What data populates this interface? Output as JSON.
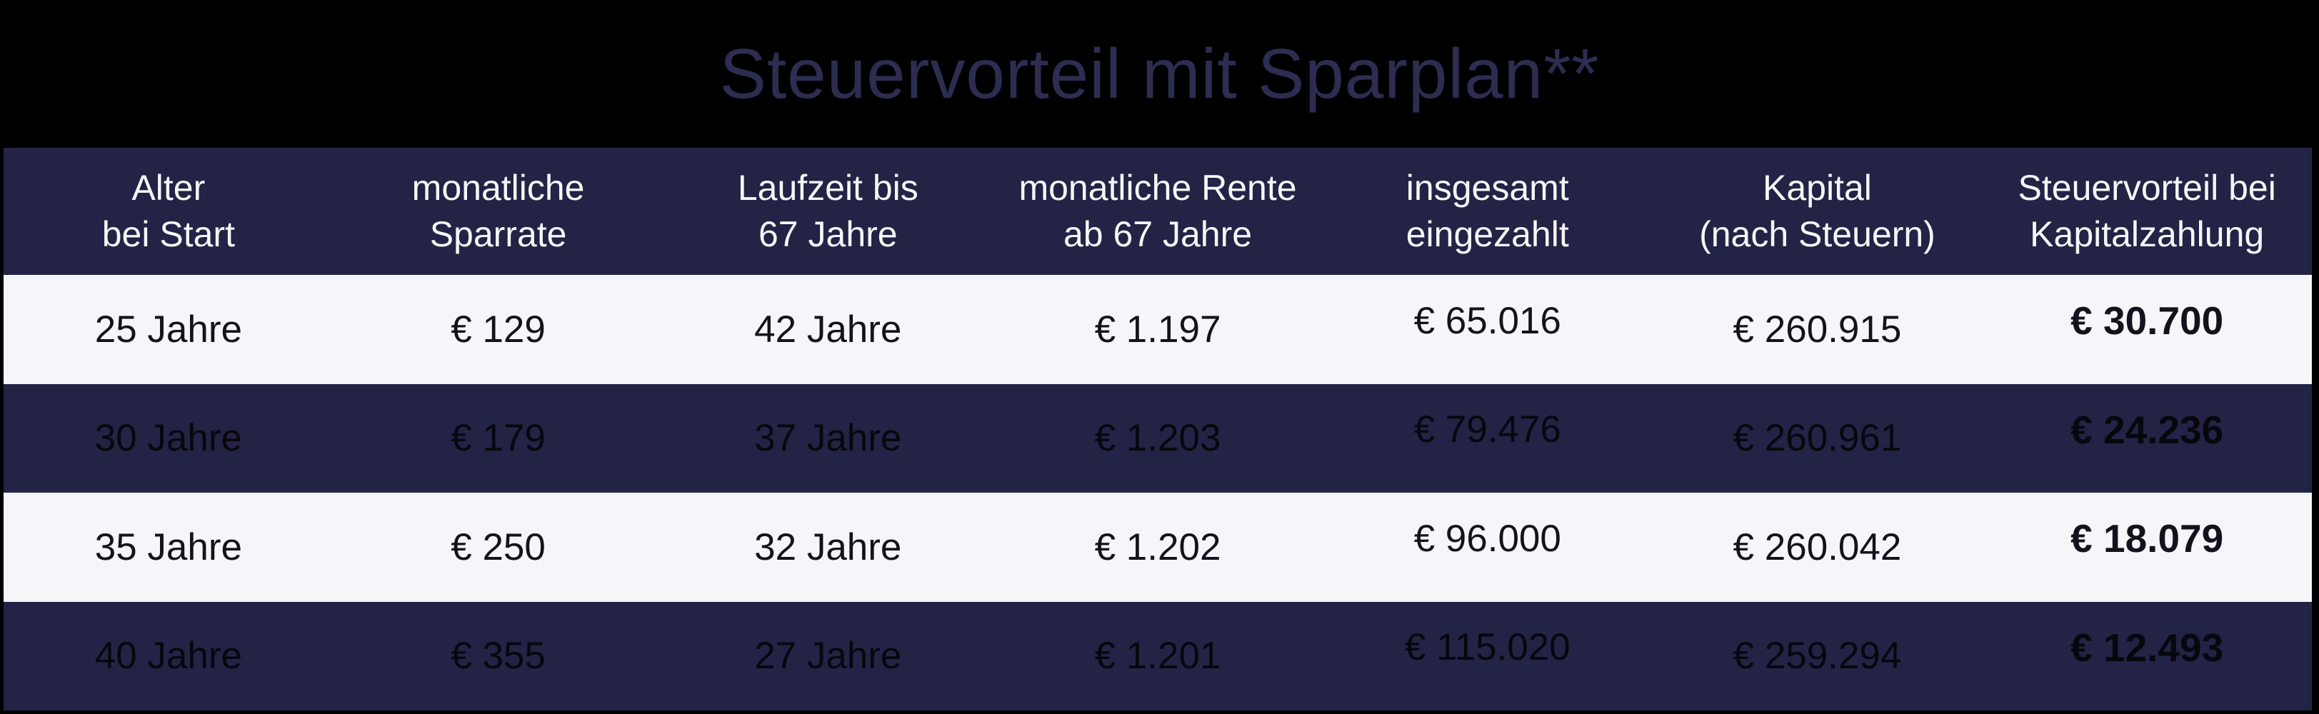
{
  "title": "Steuervorteil mit Sparplan**",
  "colors": {
    "background": "#000000",
    "navy": "#232346",
    "row_light": "#f4f6f9",
    "title_text": "#2d2d52",
    "header_text": "#f5f6f7",
    "text_dark_row": "#07070e",
    "text_light_row": "#13131d"
  },
  "chart_data": {
    "type": "table",
    "title": "Steuervorteil mit Sparplan**",
    "columns": [
      {
        "label": "Alter bei Start",
        "line1": "Alter",
        "line2": "bei Start"
      },
      {
        "label": "monatliche Sparrate",
        "line1": "monatliche",
        "line2": "Sparrate"
      },
      {
        "label": "Laufzeit bis 67 Jahre",
        "line1": "Laufzeit bis",
        "line2": "67 Jahre"
      },
      {
        "label": "monatliche Rente ab 67 Jahre",
        "line1": "monatliche Rente",
        "line2": "ab 67 Jahre"
      },
      {
        "label": "insgesamt eingezahlt",
        "line1": "insgesamt",
        "line2": "eingezahlt"
      },
      {
        "label": "Kapital (nach Steuern)",
        "line1": "Kapital",
        "line2": "(nach Steuern)"
      },
      {
        "label": "Steuervorteil bei Kapitalzahlung",
        "line1": "Steuervorteil bei",
        "line2": "Kapitalzahlung"
      }
    ],
    "rows": [
      [
        "25 Jahre",
        "€ 129",
        "42 Jahre",
        "€ 1.197",
        "€ 65.016",
        "€ 260.915",
        "€ 30.700"
      ],
      [
        "30 Jahre",
        "€ 179",
        "37 Jahre",
        "€ 1.203",
        "€ 79.476",
        "€ 260.961",
        "€ 24.236"
      ],
      [
        "35 Jahre",
        "€ 250",
        "32 Jahre",
        "€ 1.202",
        "€ 96.000",
        "€ 260.042",
        "€ 18.079"
      ],
      [
        "40 Jahre",
        "€ 355",
        "27 Jahre",
        "€ 1.201",
        "€ 115.020",
        "€ 259.294",
        "€ 12.493"
      ]
    ]
  }
}
